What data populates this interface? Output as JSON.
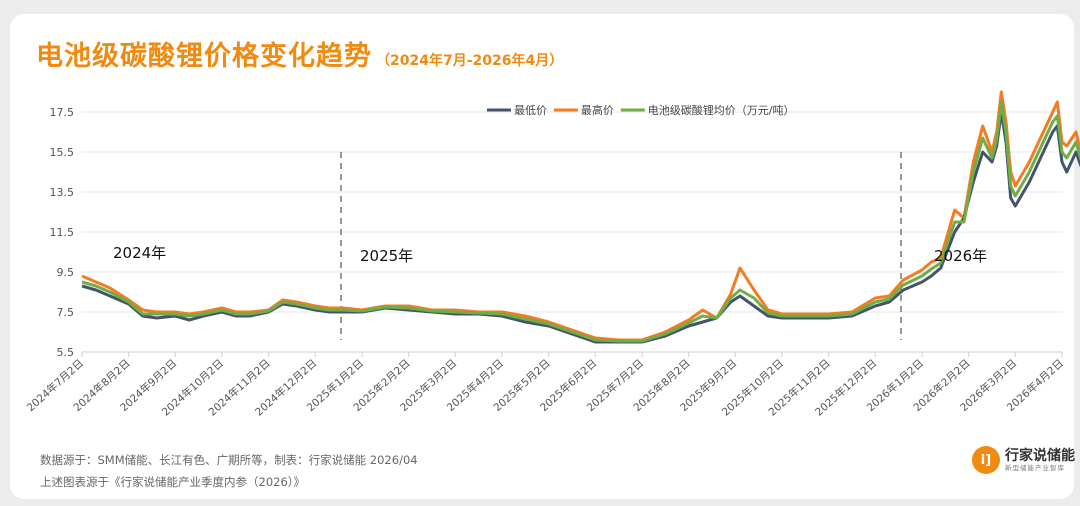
{
  "header": {
    "title": "电池级碳酸锂价格变化趋势",
    "subtitle": "（2024年7月-2026年4月）"
  },
  "legend": {
    "items": [
      {
        "label": "最低价",
        "color": "#44546a"
      },
      {
        "label": "最高价",
        "color": "#f47b20"
      },
      {
        "label": "电池级碳酸锂均价（万元/吨）",
        "color": "#70ad47"
      }
    ]
  },
  "annotations": {
    "year_2024": "2024年",
    "year_2025": "2025年",
    "year_2026": "2026年"
  },
  "footer": {
    "source": "数据源于：SMM储能、长江有色、广期所等，制表：行家说储能 2026/04",
    "origin": "上述图表源于《行家说储能产业季度内参（2026）》"
  },
  "logo": {
    "icon": "ij-logo-icon",
    "glyph": "i]",
    "name": "行家说储能",
    "tagline": "新型储能产业智库"
  },
  "chart_data": {
    "type": "line",
    "title": "电池级碳酸锂价格变化趋势（2024年7月-2026年4月）",
    "xlabel": "",
    "ylabel": "万元/吨",
    "ylim": [
      5.5,
      18.5
    ],
    "yticks": [
      5.5,
      7.5,
      9.5,
      11.5,
      13.5,
      15.5,
      17.5
    ],
    "grid": true,
    "legend_position": "top-center",
    "x_tick_labels": [
      "2024年7月2日",
      "2024年8月2日",
      "2024年9月2日",
      "2024年10月2日",
      "2024年11月2日",
      "2024年12月2日",
      "2025年1月2日",
      "2025年2月2日",
      "2025年3月2日",
      "2025年4月2日",
      "2025年5月2日",
      "2025年6月2日",
      "2025年7月2日",
      "2025年8月2日",
      "2025年9月2日",
      "2025年10月2日",
      "2025年11月2日",
      "2025年12月2日",
      "2026年1月2日",
      "2026年2月2日",
      "2026年3月2日",
      "2026年4月2日"
    ],
    "x": [
      0,
      0.3,
      0.6,
      1,
      1.3,
      1.6,
      2,
      2.3,
      2.6,
      3,
      3.3,
      3.6,
      4,
      4.3,
      4.6,
      5,
      5.3,
      5.6,
      6,
      6.5,
      7,
      7.5,
      8,
      8.5,
      9,
      9.5,
      10,
      10.5,
      11,
      11.5,
      12,
      12.5,
      13,
      13.3,
      13.6,
      13.9,
      14.1,
      14.4,
      14.7,
      15,
      15.5,
      16,
      16.5,
      17,
      17.3,
      17.6,
      18,
      18.2,
      18.4,
      18.7,
      18.9,
      19.1,
      19.3,
      19.5,
      19.6,
      19.7,
      19.8,
      19.9,
      20,
      20.3,
      20.6,
      20.8,
      20.9,
      21,
      21.1,
      21.3,
      21.5,
      21.6,
      21.7,
      21.8,
      21.9,
      22
    ],
    "series": [
      {
        "name": "最低价",
        "values": [
          8.8,
          8.6,
          8.3,
          7.9,
          7.3,
          7.2,
          7.3,
          7.1,
          7.3,
          7.5,
          7.3,
          7.3,
          7.5,
          7.9,
          7.8,
          7.6,
          7.5,
          7.5,
          7.5,
          7.7,
          7.6,
          7.5,
          7.4,
          7.4,
          7.3,
          7.0,
          6.8,
          6.4,
          6.0,
          6.0,
          6.0,
          6.3,
          6.8,
          7.0,
          7.2,
          8.0,
          8.3,
          7.8,
          7.3,
          7.2,
          7.2,
          7.2,
          7.3,
          7.8,
          8.0,
          8.6,
          9.0,
          9.3,
          9.7,
          11.5,
          12.2,
          14.0,
          15.5,
          15.0,
          15.8,
          17.5,
          16.0,
          13.2,
          12.8,
          14.0,
          15.5,
          16.5,
          16.8,
          15.0,
          14.5,
          15.5,
          14.2,
          15.0,
          14.2,
          15.5,
          14.8,
          15.6
        ]
      },
      {
        "name": "最高价",
        "values": [
          9.3,
          9.0,
          8.7,
          8.1,
          7.6,
          7.5,
          7.5,
          7.4,
          7.5,
          7.7,
          7.5,
          7.5,
          7.6,
          8.1,
          8.0,
          7.8,
          7.7,
          7.7,
          7.6,
          7.8,
          7.8,
          7.6,
          7.6,
          7.5,
          7.5,
          7.3,
          7.0,
          6.6,
          6.2,
          6.1,
          6.1,
          6.5,
          7.1,
          7.6,
          7.2,
          8.4,
          9.7,
          8.6,
          7.6,
          7.4,
          7.4,
          7.4,
          7.5,
          8.2,
          8.3,
          9.1,
          9.6,
          10.0,
          10.2,
          12.6,
          12.2,
          15.0,
          16.8,
          15.5,
          16.5,
          18.5,
          17.0,
          14.5,
          13.8,
          15.0,
          16.5,
          17.5,
          18.0,
          16.0,
          15.8,
          16.5,
          14.5,
          15.8,
          14.8,
          17.3,
          16.3,
          16.2
        ]
      },
      {
        "name": "电池级碳酸锂均价（万元/吨）",
        "values": [
          9.0,
          8.8,
          8.5,
          8.0,
          7.4,
          7.4,
          7.4,
          7.3,
          7.4,
          7.6,
          7.4,
          7.4,
          7.55,
          8.0,
          7.9,
          7.7,
          7.6,
          7.6,
          7.55,
          7.75,
          7.7,
          7.55,
          7.5,
          7.45,
          7.4,
          7.15,
          6.9,
          6.5,
          6.1,
          6.05,
          6.05,
          6.4,
          6.95,
          7.3,
          7.2,
          8.2,
          8.6,
          8.2,
          7.45,
          7.3,
          7.3,
          7.3,
          7.4,
          8.0,
          8.15,
          8.85,
          9.3,
          9.65,
          9.95,
          12.0,
          12.0,
          14.5,
          16.2,
          15.2,
          16.1,
          18.0,
          16.5,
          13.8,
          13.3,
          14.5,
          16.0,
          17.0,
          17.3,
          15.5,
          15.2,
          16.0,
          14.4,
          15.4,
          14.5,
          16.4,
          15.5,
          15.9
        ]
      }
    ]
  }
}
